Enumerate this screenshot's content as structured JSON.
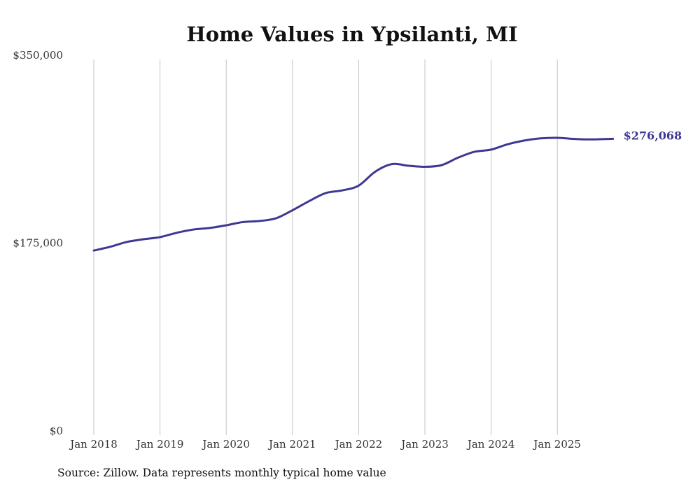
{
  "chart_data": {
    "type": "line",
    "title": "Home Values in Ypsilanti, MI",
    "xlabel": "",
    "ylabel": "",
    "ylim": [
      0,
      350000
    ],
    "yticks": [
      {
        "value": 0,
        "label": "$0"
      },
      {
        "value": 175000,
        "label": "$175,000"
      },
      {
        "value": 350000,
        "label": "$350,000"
      }
    ],
    "xticks": [
      {
        "value": 2018.0,
        "label": "Jan 2018"
      },
      {
        "value": 2019.0,
        "label": "Jan 2019"
      },
      {
        "value": 2020.0,
        "label": "Jan 2020"
      },
      {
        "value": 2021.0,
        "label": "Jan 2021"
      },
      {
        "value": 2022.0,
        "label": "Jan 2022"
      },
      {
        "value": 2023.0,
        "label": "Jan 2023"
      },
      {
        "value": 2024.0,
        "label": "Jan 2024"
      },
      {
        "value": 2025.0,
        "label": "Jan 2025"
      }
    ],
    "xlim": [
      2018.0,
      2025.84
    ],
    "grid": "vertical",
    "series": [
      {
        "name": "Typical home value",
        "color": "#3e3892",
        "x": [
          2018.0,
          2018.25,
          2018.5,
          2018.75,
          2019.0,
          2019.25,
          2019.5,
          2019.75,
          2020.0,
          2020.25,
          2020.5,
          2020.75,
          2021.0,
          2021.25,
          2021.5,
          2021.75,
          2022.0,
          2022.25,
          2022.5,
          2022.75,
          2023.0,
          2023.25,
          2023.5,
          2023.75,
          2024.0,
          2024.25,
          2024.5,
          2024.75,
          2025.0,
          2025.25,
          2025.5,
          2025.84
        ],
        "values": [
          172000,
          175500,
          180000,
          182500,
          184500,
          188500,
          191500,
          193000,
          195500,
          198500,
          199500,
          202000,
          209500,
          218000,
          225500,
          228000,
          232500,
          245500,
          252500,
          251000,
          250000,
          251500,
          258500,
          264000,
          266000,
          271000,
          274500,
          276500,
          277000,
          276000,
          275500,
          276068
        ]
      }
    ],
    "end_label": "$276,068"
  },
  "source_note": "Source: Zillow. Data represents monthly typical home value"
}
